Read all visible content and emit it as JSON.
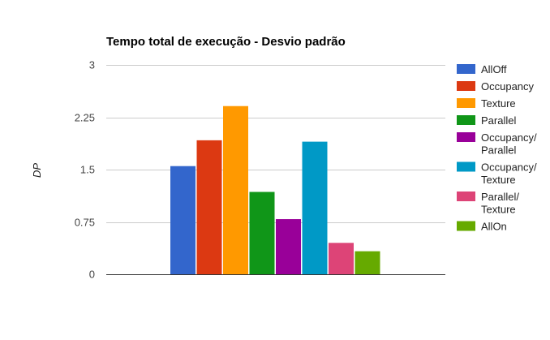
{
  "chart_data": {
    "type": "bar",
    "title": "Tempo total de execução - Desvio padrão",
    "xlabel": "",
    "ylabel": "DP",
    "ylim": [
      0,
      3
    ],
    "yticks": [
      "0",
      "0.75",
      "1.5",
      "2.25",
      "3"
    ],
    "ytick_values": [
      0,
      0.75,
      1.5,
      2.25,
      3
    ],
    "grid": true,
    "legend_position": "right",
    "series": [
      {
        "name": "AllOff",
        "legend_lines": [
          "AllOff"
        ],
        "value": 1.55,
        "color": "#3366cc"
      },
      {
        "name": "Occupancy",
        "legend_lines": [
          "Occupancy"
        ],
        "value": 1.92,
        "color": "#dc3912"
      },
      {
        "name": "Texture",
        "legend_lines": [
          "Texture"
        ],
        "value": 2.41,
        "color": "#ff9900"
      },
      {
        "name": "Parallel",
        "legend_lines": [
          "Parallel"
        ],
        "value": 1.18,
        "color": "#109618"
      },
      {
        "name": "Occupancy/ Parallel",
        "legend_lines": [
          "Occupancy/",
          "Parallel"
        ],
        "value": 0.79,
        "color": "#990099"
      },
      {
        "name": "Occupancy/ Texture",
        "legend_lines": [
          "Occupancy/",
          "Texture"
        ],
        "value": 1.9,
        "color": "#0099c6"
      },
      {
        "name": "Parallel/ Texture",
        "legend_lines": [
          "Parallel/",
          "Texture"
        ],
        "value": 0.45,
        "color": "#dd4477"
      },
      {
        "name": "AllOn",
        "legend_lines": [
          "AllOn"
        ],
        "value": 0.33,
        "color": "#66aa00"
      }
    ]
  }
}
